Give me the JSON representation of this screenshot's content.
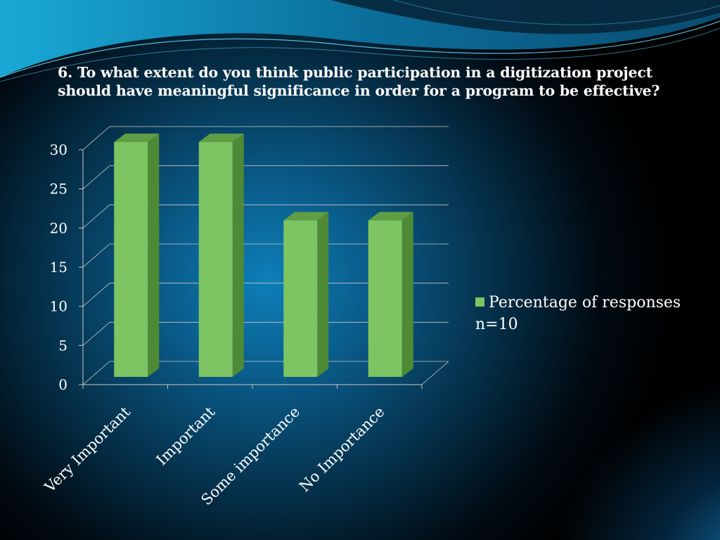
{
  "slide": {
    "title": "6. To  what extent do you think public participation in a digitization project should have meaningful significance in order for a program to be effective?"
  },
  "colors": {
    "bar_front": "#7cc562",
    "bar_side": "#4e8a36",
    "bar_top": "#5f9e45",
    "grid": "#c9c9c9",
    "text": "#ffffff"
  },
  "chart_data": {
    "type": "bar",
    "style": "3d-column",
    "categories": [
      "Very Important",
      "Important",
      "Some importance",
      "No Importance"
    ],
    "series": [
      {
        "name": "Percentage of responses n=10",
        "values": [
          30,
          30,
          20,
          20
        ]
      }
    ],
    "yticks": [
      "0",
      "5",
      "10",
      "15",
      "20",
      "25",
      "30"
    ],
    "ylim": [
      0,
      30
    ],
    "grid": true,
    "legend_position": "right"
  },
  "legend": {
    "label": "Percentage of responses n=10"
  }
}
